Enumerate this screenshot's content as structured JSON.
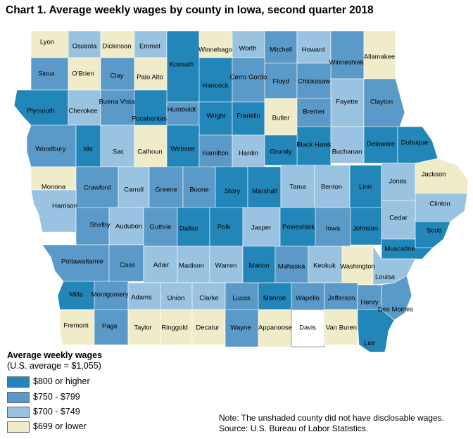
{
  "title": "Chart 1. Average weekly wages by county in Iowa, second quarter 2018",
  "legend": {
    "title": "Average weekly wages",
    "subtitle": "(U.S. average = $1,055)",
    "items": [
      {
        "label": "$800 or higher",
        "color": "#2386b8"
      },
      {
        "label": "$750 - $799",
        "color": "#5b9ac8"
      },
      {
        "label": "$700 - $749",
        "color": "#9ac3e2"
      },
      {
        "label": "$699 or lower",
        "color": "#f0ecc9"
      }
    ],
    "undisclosed_color": "#ffffff"
  },
  "note": "Note: The unshaded county did not have disclosable wages.",
  "source": "Source: U.S. Bureau of Labor Statistics.",
  "counties": [
    {
      "name": "Lyon",
      "class": 3
    },
    {
      "name": "Osceola",
      "class": 2
    },
    {
      "name": "Dickinson",
      "class": 3
    },
    {
      "name": "Emmet",
      "class": 2
    },
    {
      "name": "Kossuth",
      "class": 0
    },
    {
      "name": "Winnebago",
      "class": 3
    },
    {
      "name": "Worth",
      "class": 2
    },
    {
      "name": "Mitchell",
      "class": 1
    },
    {
      "name": "Howard",
      "class": 2
    },
    {
      "name": "Winneshiek",
      "class": 1
    },
    {
      "name": "Allamakee",
      "class": 3
    },
    {
      "name": "Sioux",
      "class": 1
    },
    {
      "name": "O'Brien",
      "class": 3
    },
    {
      "name": "Clay",
      "class": 1
    },
    {
      "name": "Palo Alto",
      "class": 3
    },
    {
      "name": "Hancock",
      "class": 0
    },
    {
      "name": "Cerro Gordo",
      "class": 1
    },
    {
      "name": "Floyd",
      "class": 1
    },
    {
      "name": "Chickasaw",
      "class": 1
    },
    {
      "name": "Fayette",
      "class": 2
    },
    {
      "name": "Clayton",
      "class": 1
    },
    {
      "name": "Plymouth",
      "class": 0
    },
    {
      "name": "Cherokee",
      "class": 2
    },
    {
      "name": "Buena Vista",
      "class": 1
    },
    {
      "name": "Pocahontas",
      "class": 0
    },
    {
      "name": "Humboldt",
      "class": 1
    },
    {
      "name": "Wright",
      "class": 0
    },
    {
      "name": "Franklin",
      "class": 0
    },
    {
      "name": "Butler",
      "class": 3
    },
    {
      "name": "Bremer",
      "class": 1
    },
    {
      "name": "Black Hawk",
      "class": 0
    },
    {
      "name": "Buchanan",
      "class": 2
    },
    {
      "name": "Delaware",
      "class": 0
    },
    {
      "name": "Dubuque",
      "class": 0
    },
    {
      "name": "Woodbury",
      "class": 1
    },
    {
      "name": "Ida",
      "class": 0
    },
    {
      "name": "Sac",
      "class": 2
    },
    {
      "name": "Calhoun",
      "class": 3
    },
    {
      "name": "Webster",
      "class": 0
    },
    {
      "name": "Hamilton",
      "class": 1
    },
    {
      "name": "Hardin",
      "class": 2
    },
    {
      "name": "Grundy",
      "class": 0
    },
    {
      "name": "Monona",
      "class": 3
    },
    {
      "name": "Crawford",
      "class": 1
    },
    {
      "name": "Carroll",
      "class": 2
    },
    {
      "name": "Greene",
      "class": 1
    },
    {
      "name": "Boone",
      "class": 1
    },
    {
      "name": "Story",
      "class": 0
    },
    {
      "name": "Marshall",
      "class": 0
    },
    {
      "name": "Tama",
      "class": 2
    },
    {
      "name": "Benton",
      "class": 2
    },
    {
      "name": "Linn",
      "class": 0
    },
    {
      "name": "Jones",
      "class": 2
    },
    {
      "name": "Jackson",
      "class": 3
    },
    {
      "name": "Clinton",
      "class": 2
    },
    {
      "name": "Cedar",
      "class": 2
    },
    {
      "name": "Harrison",
      "class": 2
    },
    {
      "name": "Shelby",
      "class": 1
    },
    {
      "name": "Audubon",
      "class": 2
    },
    {
      "name": "Guthrie",
      "class": 1
    },
    {
      "name": "Dallas",
      "class": 0
    },
    {
      "name": "Polk",
      "class": 0
    },
    {
      "name": "Jasper",
      "class": 2
    },
    {
      "name": "Poweshiek",
      "class": 0
    },
    {
      "name": "Iowa",
      "class": 1
    },
    {
      "name": "Johnson",
      "class": 0
    },
    {
      "name": "Scott",
      "class": 0
    },
    {
      "name": "Muscatine",
      "class": 0
    },
    {
      "name": "Pottawattamie",
      "class": 1
    },
    {
      "name": "Cass",
      "class": 1
    },
    {
      "name": "Adair",
      "class": 2
    },
    {
      "name": "Madison",
      "class": 2
    },
    {
      "name": "Warren",
      "class": 2
    },
    {
      "name": "Marion",
      "class": 0
    },
    {
      "name": "Mahaska",
      "class": 1
    },
    {
      "name": "Keokuk",
      "class": 2
    },
    {
      "name": "Washington",
      "class": 3
    },
    {
      "name": "Louisa",
      "class": 2
    },
    {
      "name": "Mills",
      "class": 0
    },
    {
      "name": "Montgomery",
      "class": 1
    },
    {
      "name": "Adams",
      "class": 2
    },
    {
      "name": "Union",
      "class": 2
    },
    {
      "name": "Clarke",
      "class": 2
    },
    {
      "name": "Lucas",
      "class": 1
    },
    {
      "name": "Monroe",
      "class": 0
    },
    {
      "name": "Wapello",
      "class": 1
    },
    {
      "name": "Jefferson",
      "class": 1
    },
    {
      "name": "Henry",
      "class": 1
    },
    {
      "name": "Des Moines",
      "class": 1
    },
    {
      "name": "Fremont",
      "class": 3
    },
    {
      "name": "Page",
      "class": 1
    },
    {
      "name": "Taylor",
      "class": 3
    },
    {
      "name": "Ringgold",
      "class": 3
    },
    {
      "name": "Decatur",
      "class": 3
    },
    {
      "name": "Wayne",
      "class": 1
    },
    {
      "name": "Appanoose",
      "class": 3
    },
    {
      "name": "Davis",
      "class": -1
    },
    {
      "name": "Van Buren",
      "class": 3
    },
    {
      "name": "Lee",
      "class": 0
    }
  ]
}
